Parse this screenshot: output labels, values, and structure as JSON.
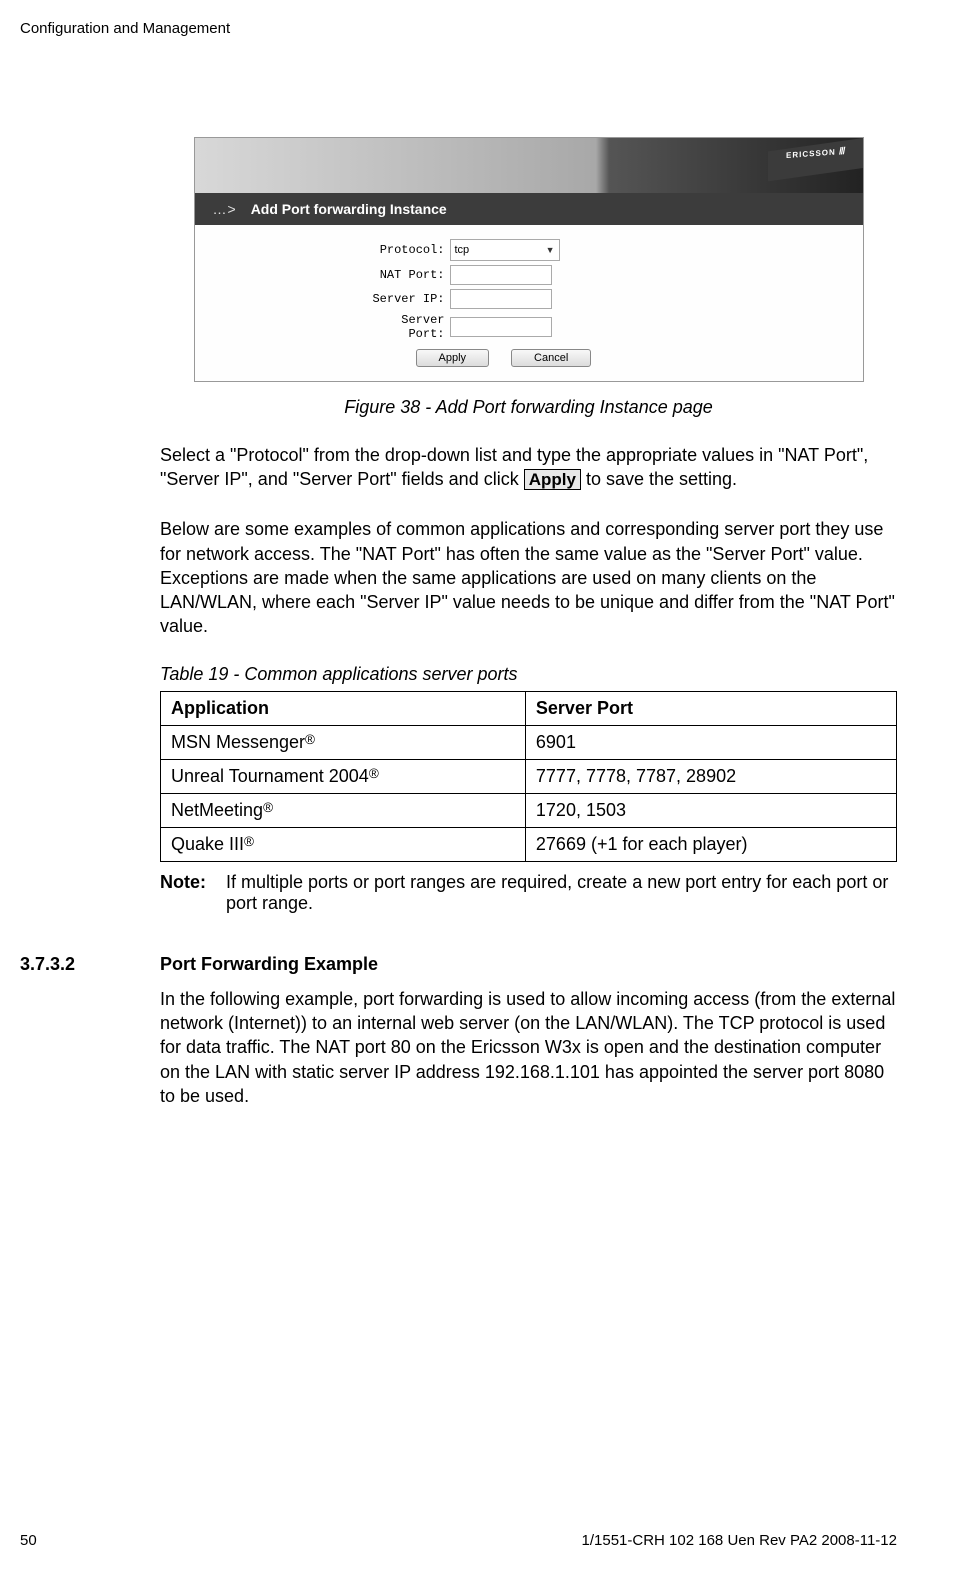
{
  "header": {
    "text": "Configuration and Management"
  },
  "screenshot": {
    "brand": "ERICSSON",
    "brand_marks": "///",
    "bar_dots": "…>",
    "bar_title": "Add Port forwarding Instance",
    "form": {
      "protocol_label": "Protocol:",
      "protocol_value": "tcp",
      "nat_port_label": "NAT Port:",
      "server_ip_label": "Server IP:",
      "server_port_label": "Server Port:",
      "apply_btn": "Apply",
      "cancel_btn": "Cancel"
    }
  },
  "figure_caption": "Figure 38 - Add Port forwarding Instance page",
  "para1_a": "Select a \"Protocol\" from the drop-down list and type the appropriate values in \"NAT Port\", \"Server IP\", and \"Server Port\" fields and click ",
  "para1_btn": "Apply",
  "para1_b": " to save the setting.",
  "para2": "Below are some examples of common applications and corresponding server port they use for network access. The \"NAT Port\" has often the same value as the \"Server Port\" value. Exceptions are made when the same applications are used on many clients on the LAN/WLAN, where each \"Server IP\" value needs to be unique and differ from the \"NAT Port\" value.",
  "table_caption": "Table 19 - Common applications server ports",
  "table": {
    "headers": [
      "Application",
      "Server Port"
    ],
    "rows": [
      {
        "app": "MSN Messenger",
        "reg": "®",
        "port": "6901"
      },
      {
        "app": "Unreal Tournament 2004",
        "reg": "®",
        "port": "7777, 7778, 7787, 28902"
      },
      {
        "app": "NetMeeting",
        "reg": "®",
        "port": "1720, 1503"
      },
      {
        "app": "Quake III",
        "reg": "®",
        "port": "27669 (+1 for each player)"
      }
    ]
  },
  "note_label": "Note:",
  "note_text": "If multiple ports or port ranges are required, create a new port entry for each port or port range.",
  "section_num": "3.7.3.2",
  "section_title": "Port Forwarding Example",
  "para3": "In the following example, port forwarding is used to allow incoming access (from the external network (Internet)) to an internal web server (on the LAN/WLAN). The TCP protocol is used for data traffic. The NAT port 80 on the Ericsson W3x is open and the destination computer on the LAN with static server IP address 192.168.1.101 has appointed the server port 8080 to be used.",
  "footer": {
    "page": "50",
    "doc": "1/1551-CRH 102 168 Uen Rev PA2  2008-11-12"
  }
}
